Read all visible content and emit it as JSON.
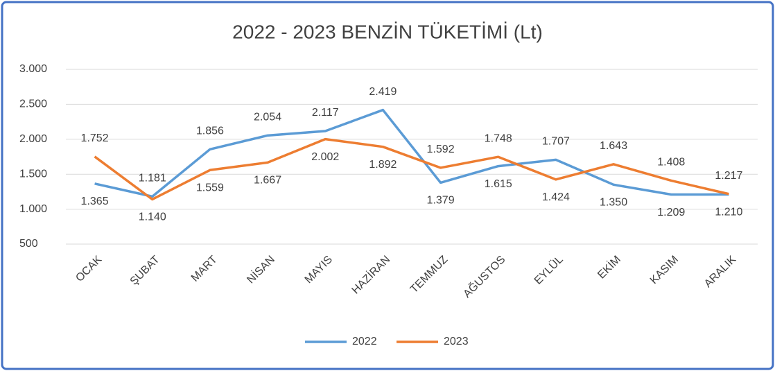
{
  "chart_data": {
    "type": "line",
    "title": "2022 - 2023 BENZİN TÜKETİMİ (Lt)",
    "categories": [
      "OCAK",
      "ŞUBAT",
      "MART",
      "NİSAN",
      "MAYIS",
      "HAZİRAN",
      "TEMMUZ",
      "AĞUSTOS",
      "EYLÜL",
      "EKİM",
      "KASIM",
      "ARALIK"
    ],
    "series": [
      {
        "name": "2022",
        "color": "#5b9bd5",
        "values": [
          1365,
          1181,
          1856,
          2054,
          2117,
          2419,
          1379,
          1615,
          1707,
          1350,
          1209,
          1210
        ],
        "value_labels": [
          "1.365",
          "1.181",
          "1.856",
          "2.054",
          "2.117",
          "2.419",
          "1.379",
          "1.615",
          "1.707",
          "1.350",
          "1.209",
          "1.210"
        ]
      },
      {
        "name": "2023",
        "color": "#ed7d31",
        "values": [
          1752,
          1140,
          1559,
          1667,
          2002,
          1892,
          1592,
          1748,
          1424,
          1643,
          1408,
          1217
        ],
        "value_labels": [
          "1.752",
          "1.140",
          "1.559",
          "1.667",
          "2.002",
          "1.892",
          "1.592",
          "1.748",
          "1.424",
          "1.643",
          "1.408",
          "1.217"
        ]
      }
    ],
    "ylim": [
      500,
      3000
    ],
    "yticks": [
      500,
      {
        "value": 1000,
        "label": "1.000"
      },
      {
        "value": 1500,
        "label": "1.500"
      },
      {
        "value": 2000,
        "label": "2.000"
      },
      {
        "value": 2500,
        "label": "2.500"
      },
      {
        "value": 3000,
        "label": "3.000"
      }
    ],
    "grid": true,
    "legend": "bottom"
  }
}
